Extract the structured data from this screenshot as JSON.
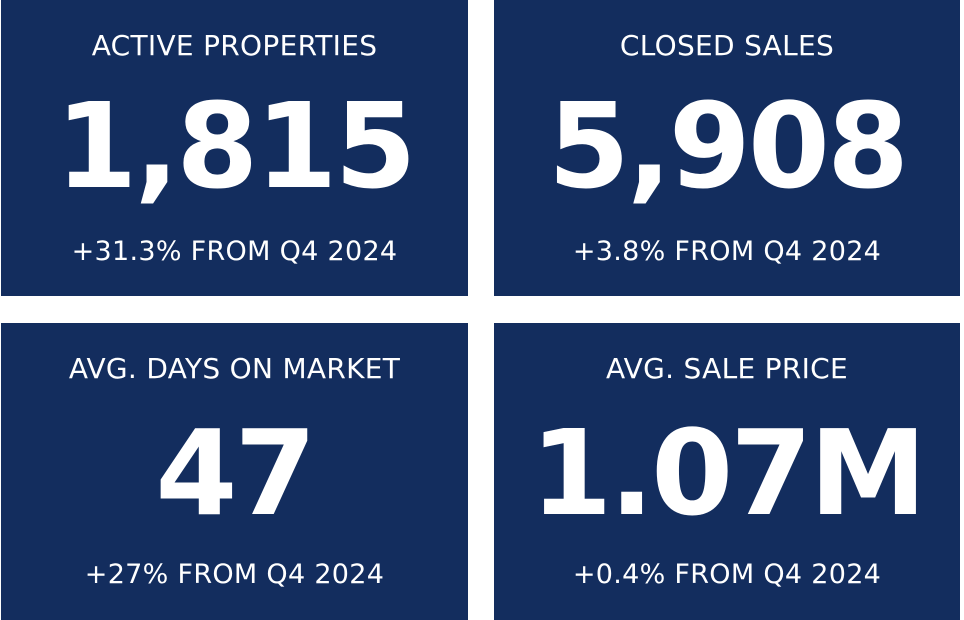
{
  "colors": {
    "card_background": "#132d5e",
    "text": "#ffffff",
    "page_background": "#ffffff"
  },
  "stats": [
    {
      "label": "ACTIVE PROPERTIES",
      "value": "1,815",
      "change": "+31.3% FROM Q4 2024"
    },
    {
      "label": "CLOSED SALES",
      "value": "5,908",
      "change": "+3.8% FROM Q4 2024"
    },
    {
      "label": "AVG. DAYS ON MARKET",
      "value": "47",
      "change": "+27% FROM Q4 2024"
    },
    {
      "label": "AVG. SALE PRICE",
      "value": "1.07M",
      "change": "+0.4% FROM Q4 2024"
    }
  ]
}
